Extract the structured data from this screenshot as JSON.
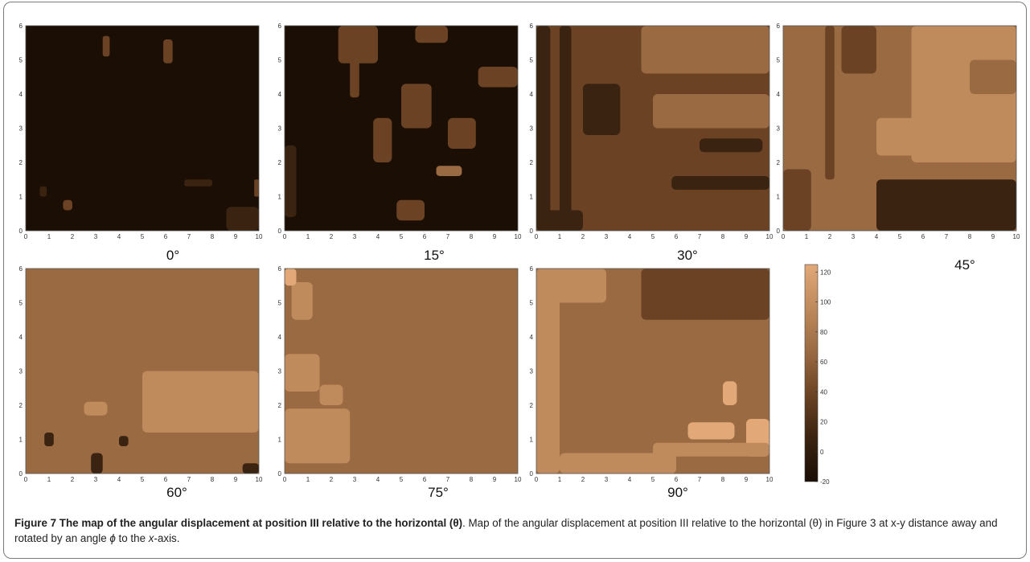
{
  "caption": {
    "bold": "Figure 7 The map of the angular displacement at position III relative to the horizontal (θ)",
    "sep": ". ",
    "text_a": "Map of the angular displacement at position III relative to the horizontal (θ) in Figure 3 at x-y distance away and rotated by an angle ",
    "phi": "ϕ",
    "text_b": " to the ",
    "xaxis": "x",
    "text_c": "-axis."
  },
  "colors": {
    "levels": [
      "#1b0e05",
      "#3a2310",
      "#6b4324",
      "#9a6a42",
      "#bf8a5c",
      "#e2a878"
    ]
  },
  "chart_data": {
    "type": "heatmap",
    "x_ticks": [
      "0",
      "1",
      "2",
      "3",
      "4",
      "5",
      "6",
      "7",
      "8",
      "9",
      "10"
    ],
    "y_ticks": [
      "0",
      "1",
      "2",
      "3",
      "4",
      "5",
      "6"
    ],
    "xlim": [
      0,
      10
    ],
    "ylim": [
      0,
      6
    ],
    "colorbar": {
      "min": -20,
      "max": 125,
      "ticks": [
        "120",
        "100",
        "80",
        "60",
        "40",
        "20",
        "0",
        "-20"
      ]
    },
    "panels": [
      {
        "label": "0°",
        "base": 0,
        "regions": [
          {
            "x0": 3.3,
            "x1": 3.6,
            "y0": 5.1,
            "y1": 5.7,
            "level": 2
          },
          {
            "x0": 5.9,
            "x1": 6.3,
            "y0": 4.9,
            "y1": 5.6,
            "level": 2
          },
          {
            "x0": 6.8,
            "x1": 8.0,
            "y0": 1.3,
            "y1": 1.5,
            "level": 1
          },
          {
            "x0": 0.6,
            "x1": 0.9,
            "y0": 1.0,
            "y1": 1.3,
            "level": 1
          },
          {
            "x0": 8.6,
            "x1": 10.0,
            "y0": 0.0,
            "y1": 0.7,
            "level": 1
          },
          {
            "x0": 1.6,
            "x1": 2.0,
            "y0": 0.6,
            "y1": 0.9,
            "level": 2
          },
          {
            "x0": 9.8,
            "x1": 10.0,
            "y0": 1.0,
            "y1": 1.5,
            "level": 2
          }
        ]
      },
      {
        "label": "15°",
        "base": 0,
        "regions": [
          {
            "x0": 2.3,
            "x1": 4.0,
            "y0": 4.9,
            "y1": 6.0,
            "level": 2
          },
          {
            "x0": 2.8,
            "x1": 3.2,
            "y0": 3.9,
            "y1": 6.0,
            "level": 2
          },
          {
            "x0": 3.8,
            "x1": 4.6,
            "y0": 2.0,
            "y1": 3.3,
            "level": 2
          },
          {
            "x0": 5.0,
            "x1": 6.3,
            "y0": 3.0,
            "y1": 4.3,
            "level": 2
          },
          {
            "x0": 7.0,
            "x1": 8.2,
            "y0": 2.4,
            "y1": 3.3,
            "level": 2
          },
          {
            "x0": 0.0,
            "x1": 0.5,
            "y0": 0.4,
            "y1": 2.5,
            "level": 1
          },
          {
            "x0": 6.5,
            "x1": 7.6,
            "y0": 1.6,
            "y1": 1.9,
            "level": 3
          },
          {
            "x0": 4.8,
            "x1": 6.0,
            "y0": 0.3,
            "y1": 0.9,
            "level": 2
          },
          {
            "x0": 8.3,
            "x1": 10.0,
            "y0": 4.2,
            "y1": 4.8,
            "level": 2
          },
          {
            "x0": 5.6,
            "x1": 7.0,
            "y0": 5.5,
            "y1": 6.0,
            "level": 2
          }
        ]
      },
      {
        "label": "30°",
        "base": 2,
        "regions": [
          {
            "x0": 0.0,
            "x1": 0.6,
            "y0": 0.0,
            "y1": 6.0,
            "level": 1
          },
          {
            "x0": 1.0,
            "x1": 1.5,
            "y0": 0.0,
            "y1": 6.0,
            "level": 1
          },
          {
            "x0": 2.0,
            "x1": 3.6,
            "y0": 2.8,
            "y1": 4.3,
            "level": 1
          },
          {
            "x0": 4.5,
            "x1": 10.0,
            "y0": 4.6,
            "y1": 6.0,
            "level": 3
          },
          {
            "x0": 5.0,
            "x1": 10.0,
            "y0": 3.0,
            "y1": 4.0,
            "level": 3
          },
          {
            "x0": 5.8,
            "x1": 10.0,
            "y0": 1.2,
            "y1": 1.6,
            "level": 1
          },
          {
            "x0": 7.0,
            "x1": 9.7,
            "y0": 2.3,
            "y1": 2.7,
            "level": 1
          },
          {
            "x0": 0.0,
            "x1": 2.0,
            "y0": 0.0,
            "y1": 0.6,
            "level": 1
          }
        ]
      },
      {
        "label": "45°",
        "base": 3,
        "regions": [
          {
            "x0": 2.5,
            "x1": 4.0,
            "y0": 4.6,
            "y1": 6.0,
            "level": 2
          },
          {
            "x0": 5.5,
            "x1": 10.0,
            "y0": 2.0,
            "y1": 6.0,
            "level": 4
          },
          {
            "x0": 4.0,
            "x1": 6.0,
            "y0": 2.2,
            "y1": 3.3,
            "level": 4
          },
          {
            "x0": 4.0,
            "x1": 10.0,
            "y0": 0.0,
            "y1": 1.5,
            "level": 1
          },
          {
            "x0": 0.0,
            "x1": 1.2,
            "y0": 0.0,
            "y1": 1.8,
            "level": 2
          },
          {
            "x0": 1.8,
            "x1": 2.2,
            "y0": 1.5,
            "y1": 6.0,
            "level": 2
          },
          {
            "x0": 8.0,
            "x1": 10.0,
            "y0": 4.0,
            "y1": 5.0,
            "level": 3
          }
        ]
      },
      {
        "label": "60°",
        "base": 3,
        "regions": [
          {
            "x0": 5.0,
            "x1": 10.0,
            "y0": 1.2,
            "y1": 3.0,
            "level": 4
          },
          {
            "x0": 5.5,
            "x1": 10.0,
            "y0": 4.3,
            "y1": 6.0,
            "level": 3
          },
          {
            "x0": 0.8,
            "x1": 1.2,
            "y0": 0.8,
            "y1": 1.2,
            "level": 1
          },
          {
            "x0": 2.8,
            "x1": 3.3,
            "y0": 0.0,
            "y1": 0.6,
            "level": 1
          },
          {
            "x0": 4.0,
            "x1": 4.4,
            "y0": 0.8,
            "y1": 1.1,
            "level": 1
          },
          {
            "x0": 9.3,
            "x1": 10.0,
            "y0": 0.0,
            "y1": 0.3,
            "level": 1
          },
          {
            "x0": 2.5,
            "x1": 3.5,
            "y0": 1.7,
            "y1": 2.1,
            "level": 4
          }
        ]
      },
      {
        "label": "75°",
        "base": 3,
        "regions": [
          {
            "x0": 0.0,
            "x1": 1.5,
            "y0": 2.4,
            "y1": 3.5,
            "level": 4
          },
          {
            "x0": 0.0,
            "x1": 2.8,
            "y0": 0.3,
            "y1": 1.9,
            "level": 4
          },
          {
            "x0": 0.3,
            "x1": 1.2,
            "y0": 4.5,
            "y1": 5.6,
            "level": 4
          },
          {
            "x0": 0.0,
            "x1": 0.5,
            "y0": 5.5,
            "y1": 6.0,
            "level": 5
          },
          {
            "x0": 4.0,
            "x1": 10.0,
            "y0": 2.0,
            "y1": 6.0,
            "level": 3
          },
          {
            "x0": 1.5,
            "x1": 2.5,
            "y0": 2.0,
            "y1": 2.6,
            "level": 4
          }
        ]
      },
      {
        "label": "90°",
        "base": 3,
        "regions": [
          {
            "x0": 0.0,
            "x1": 1.0,
            "y0": 0.0,
            "y1": 6.0,
            "level": 4
          },
          {
            "x0": 0.3,
            "x1": 3.0,
            "y0": 5.0,
            "y1": 6.0,
            "level": 4
          },
          {
            "x0": 4.5,
            "x1": 10.0,
            "y0": 4.5,
            "y1": 6.0,
            "level": 2
          },
          {
            "x0": 8.0,
            "x1": 8.6,
            "y0": 2.0,
            "y1": 2.7,
            "level": 5
          },
          {
            "x0": 6.5,
            "x1": 8.5,
            "y0": 1.0,
            "y1": 1.5,
            "level": 5
          },
          {
            "x0": 9.0,
            "x1": 10.0,
            "y0": 0.5,
            "y1": 1.6,
            "level": 5
          },
          {
            "x0": 1.5,
            "x1": 5.5,
            "y0": 0.1,
            "y1": 0.4,
            "level": 5
          },
          {
            "x0": 1.0,
            "x1": 6.0,
            "y0": 0.0,
            "y1": 0.6,
            "level": 4
          },
          {
            "x0": 5.0,
            "x1": 10.0,
            "y0": 0.5,
            "y1": 0.9,
            "level": 4
          }
        ]
      }
    ]
  }
}
